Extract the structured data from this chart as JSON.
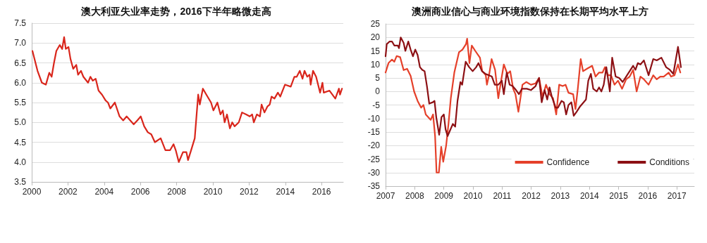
{
  "chart_data": [
    {
      "type": "line",
      "title": "澳大利亚失业率走势，2016下半年略微走高",
      "series": [
        {
          "color": "#d9261c",
          "x": [
            2000.04,
            2000.32,
            2000.56,
            2000.78,
            2000.97,
            2001.1,
            2001.23,
            2001.36,
            2001.55,
            2001.68,
            2001.79,
            2001.88,
            2002.03,
            2002.14,
            2002.29,
            2002.46,
            2002.56,
            2002.72,
            2002.85,
            2003.11,
            2003.24,
            2003.37,
            2003.53,
            2003.69,
            2003.88,
            2004.08,
            2004.21,
            2004.34,
            2004.59,
            2004.85,
            2005.05,
            2005.24,
            2005.44,
            2005.63,
            2005.83,
            2006.02,
            2006.21,
            2006.41,
            2006.6,
            2006.8,
            2007.12,
            2007.38,
            2007.64,
            2007.83,
            2007.95,
            2008.12,
            2008.35,
            2008.54,
            2008.63,
            2008.8,
            2009.0,
            2009.19,
            2009.28,
            2009.45,
            2009.64,
            2009.9,
            2010.03,
            2010.25,
            2010.42,
            2010.55,
            2010.65,
            2010.78,
            2010.94,
            2011.07,
            2011.2,
            2011.43,
            2011.61,
            2011.84,
            2012.04,
            2012.17,
            2012.26,
            2012.43,
            2012.6,
            2012.69,
            2012.85,
            2013.01,
            2013.14,
            2013.24,
            2013.4,
            2013.59,
            2013.72,
            2013.98,
            2014.3,
            2014.5,
            2014.63,
            2014.8,
            2014.95,
            2015.06,
            2015.21,
            2015.34,
            2015.4,
            2015.53,
            2015.7,
            2015.92,
            2016.05,
            2016.12,
            2016.44,
            2016.76,
            2016.96,
            2017.02,
            2017.13
          ],
          "values": [
            6.8,
            6.3,
            6.0,
            5.95,
            6.25,
            6.15,
            6.5,
            6.8,
            6.95,
            6.85,
            7.15,
            6.85,
            6.9,
            6.6,
            6.35,
            6.45,
            6.2,
            6.3,
            6.15,
            6.0,
            6.15,
            6.05,
            6.1,
            5.8,
            5.7,
            5.55,
            5.5,
            5.35,
            5.5,
            5.15,
            5.05,
            5.15,
            5.05,
            4.95,
            5.05,
            5.15,
            4.9,
            4.75,
            4.7,
            4.5,
            4.6,
            4.3,
            4.3,
            4.45,
            4.3,
            4.0,
            4.25,
            4.25,
            4.05,
            4.3,
            4.6,
            5.7,
            5.45,
            5.85,
            5.7,
            5.5,
            5.3,
            5.5,
            5.2,
            5.3,
            5.0,
            5.2,
            4.85,
            5.0,
            4.9,
            5.0,
            5.25,
            5.2,
            5.15,
            5.2,
            5.0,
            5.2,
            5.15,
            5.45,
            5.25,
            5.4,
            5.45,
            5.65,
            5.6,
            5.75,
            5.65,
            5.95,
            5.9,
            6.15,
            6.15,
            6.3,
            6.1,
            6.3,
            6.15,
            6.2,
            5.95,
            6.3,
            6.15,
            5.75,
            6.0,
            5.75,
            5.8,
            5.6,
            5.85,
            5.7,
            5.85
          ]
        }
      ],
      "xlim": [
        2000,
        2017.2
      ],
      "xticks": [
        2000,
        2002,
        2004,
        2006,
        2008,
        2010,
        2012,
        2014,
        2016
      ],
      "ylim": [
        3.5,
        7.5
      ],
      "yticks": [
        3.5,
        {
          "value": 4,
          "label": "4.0"
        },
        4.5,
        {
          "value": 5,
          "label": "5.0"
        },
        5.5,
        {
          "value": 6,
          "label": "6.0"
        },
        6.5,
        {
          "value": 7,
          "label": "7.0"
        },
        7.5
      ],
      "grid": "y",
      "marker": "none",
      "line_style": "solid"
    },
    {
      "type": "line",
      "title": "澳洲商业信心与商业环境指数保持在长期平均水平上方",
      "series": [
        {
          "name": "Confidence",
          "color": "#e5402a",
          "x": [
            2007.0,
            2007.1,
            2007.22,
            2007.3,
            2007.38,
            2007.5,
            2007.62,
            2007.74,
            2007.86,
            2007.98,
            2008.1,
            2008.22,
            2008.3,
            2008.38,
            2008.55,
            2008.63,
            2008.7,
            2008.75,
            2008.83,
            2008.91,
            2008.98,
            2009.08,
            2009.16,
            2009.24,
            2009.36,
            2009.52,
            2009.64,
            2009.76,
            2009.8,
            2009.88,
            2009.96,
            2010.08,
            2010.24,
            2010.32,
            2010.44,
            2010.48,
            2010.56,
            2010.64,
            2010.76,
            2010.87,
            2010.96,
            2011.06,
            2011.18,
            2011.28,
            2011.38,
            2011.46,
            2011.56,
            2011.7,
            2011.83,
            2011.99,
            2012.15,
            2012.27,
            2012.39,
            2012.51,
            2012.63,
            2012.75,
            2012.86,
            2012.96,
            2013.08,
            2013.18,
            2013.28,
            2013.44,
            2013.52,
            2013.6,
            2013.7,
            2013.78,
            2013.93,
            2014.09,
            2014.21,
            2014.33,
            2014.45,
            2014.53,
            2014.64,
            2014.74,
            2014.86,
            2014.98,
            2015.12,
            2015.26,
            2015.38,
            2015.5,
            2015.62,
            2015.75,
            2015.87,
            2016.03,
            2016.19,
            2016.31,
            2016.43,
            2016.55,
            2016.72,
            2016.8,
            2016.92,
            2017.04,
            2017.12
          ],
          "values": [
            7,
            10.5,
            11.8,
            11,
            13.1,
            12.7,
            7.9,
            8.4,
            5.8,
            0,
            -3.5,
            -6,
            -5,
            -8.5,
            -10.5,
            -8.5,
            -16.5,
            -30,
            -30,
            -20.5,
            -26,
            -20,
            -12,
            -2.5,
            7,
            14.5,
            15.5,
            17.5,
            19.5,
            10.5,
            17,
            15,
            12.5,
            7.5,
            6,
            2.5,
            6.5,
            12,
            8,
            -2.5,
            3.5,
            10,
            6.5,
            7.5,
            1,
            -1,
            -7.5,
            2.5,
            3.5,
            2.5,
            3,
            5,
            -2,
            2.5,
            -1,
            -2.5,
            -8.5,
            2.5,
            2,
            2.5,
            -0.5,
            -1,
            -6.5,
            1,
            12,
            7.5,
            8.5,
            9.5,
            5.5,
            7,
            7,
            9,
            6,
            6,
            2.5,
            4,
            1,
            4.5,
            5.5,
            8,
            0,
            5.5,
            4.5,
            2.5,
            6,
            4.5,
            5.5,
            5.5,
            7,
            5.5,
            6,
            10,
            7
          ]
        },
        {
          "name": "Conditions",
          "color": "#8c1014",
          "x": [
            2007.0,
            2007.04,
            2007.14,
            2007.22,
            2007.3,
            2007.42,
            2007.46,
            2007.52,
            2007.62,
            2007.68,
            2007.78,
            2007.86,
            2007.94,
            2008.02,
            2008.1,
            2008.18,
            2008.26,
            2008.34,
            2008.42,
            2008.5,
            2008.62,
            2008.68,
            2008.74,
            2008.84,
            2008.92,
            2009.0,
            2009.06,
            2009.13,
            2009.23,
            2009.31,
            2009.39,
            2009.47,
            2009.57,
            2009.63,
            2009.75,
            2009.87,
            2009.99,
            2010.11,
            2010.19,
            2010.31,
            2010.43,
            2010.55,
            2010.65,
            2010.75,
            2010.87,
            2010.99,
            2011.06,
            2011.16,
            2011.26,
            2011.36,
            2011.48,
            2011.58,
            2011.68,
            2011.85,
            2011.99,
            2012.15,
            2012.27,
            2012.36,
            2012.46,
            2012.55,
            2012.63,
            2012.71,
            2012.84,
            2012.92,
            2013.04,
            2013.12,
            2013.2,
            2013.28,
            2013.38,
            2013.46,
            2013.56,
            2013.68,
            2013.88,
            2013.96,
            2014.05,
            2014.13,
            2014.25,
            2014.33,
            2014.41,
            2014.49,
            2014.58,
            2014.7,
            2014.78,
            2014.9,
            2015.02,
            2015.14,
            2015.26,
            2015.38,
            2015.5,
            2015.58,
            2015.66,
            2015.75,
            2015.87,
            2016.03,
            2016.19,
            2016.31,
            2016.47,
            2016.63,
            2016.76,
            2016.88,
            2017.04,
            2017.14
          ],
          "values": [
            13,
            17.5,
            18.5,
            18.5,
            17,
            17,
            16,
            20,
            18,
            15,
            18.5,
            15.5,
            13,
            15.5,
            13.5,
            9,
            8,
            7.5,
            2,
            -4.5,
            -4,
            -3.5,
            -9.5,
            -16,
            -9.5,
            -8.5,
            -14,
            -16.5,
            -14,
            -12,
            -13,
            -3.5,
            3.5,
            2.5,
            11,
            9,
            7.5,
            9,
            10.5,
            7.5,
            6.5,
            6,
            5.5,
            2.5,
            2.5,
            4,
            -1,
            7,
            2.5,
            2,
            0.5,
            -1,
            1,
            1,
            0.5,
            2,
            5,
            -4,
            0.5,
            -3,
            1.5,
            -2,
            -6,
            -6,
            -3.5,
            -4,
            -8.5,
            -5,
            -4,
            -9,
            -7.5,
            -5.5,
            -3,
            4,
            6.5,
            1,
            0,
            1.5,
            0,
            2.5,
            9,
            0,
            12.5,
            5.5,
            5,
            3.5,
            5.5,
            7.5,
            9.5,
            8,
            10.5,
            10,
            11.5,
            6,
            12,
            11.5,
            12.5,
            9,
            8,
            6.5,
            16.5,
            9
          ]
        }
      ],
      "xlim": [
        2007,
        2017.6
      ],
      "xticks": [
        2007,
        2008,
        2009,
        2010,
        2011,
        2012,
        2013,
        2014,
        2015,
        2016,
        2017
      ],
      "ylim": [
        -35,
        25
      ],
      "yticks": [
        -35,
        -30,
        -25,
        -20,
        -15,
        -10,
        -5,
        0,
        5,
        10,
        15,
        20,
        25
      ],
      "grid": "y",
      "legend": "bottom right",
      "marker": "none",
      "line_style": "solid"
    }
  ]
}
